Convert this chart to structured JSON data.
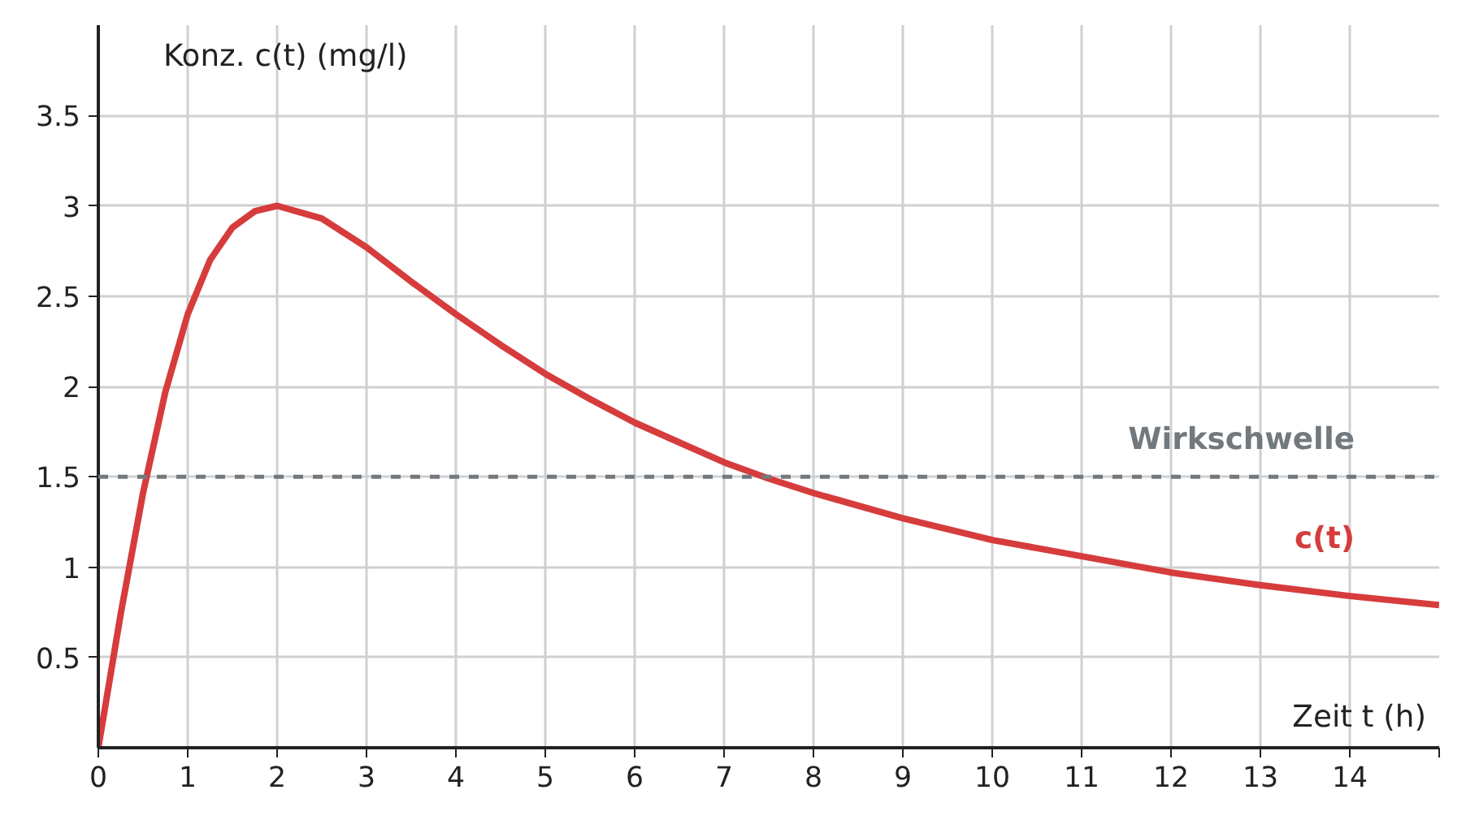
{
  "chart_data": {
    "type": "line",
    "xlabel": "Zeit t (h)",
    "ylabel": "Konz. c(t) (mg/l)",
    "x": [
      0,
      0.25,
      0.5,
      0.75,
      1,
      1.25,
      1.5,
      1.75,
      2,
      2.5,
      3,
      3.5,
      4,
      4.5,
      5,
      5.5,
      6,
      6.5,
      7,
      7.5,
      8,
      9,
      10,
      11,
      12,
      13,
      14,
      15
    ],
    "series": [
      {
        "name": "c(t)",
        "color": "#d63c3c",
        "values": [
          0,
          0.74,
          1.41,
          1.97,
          2.4,
          2.7,
          2.88,
          2.97,
          3,
          2.93,
          2.77,
          2.58,
          2.4,
          2.23,
          2.07,
          1.93,
          1.8,
          1.69,
          1.58,
          1.49,
          1.41,
          1.27,
          1.15,
          1.06,
          0.97,
          0.9,
          0.84,
          0.79
        ]
      }
    ],
    "xlim": [
      0,
      15
    ],
    "ylim": [
      0,
      4
    ],
    "xticks": [
      0,
      1,
      2,
      3,
      4,
      5,
      6,
      7,
      8,
      9,
      10,
      11,
      12,
      13,
      14,
      {
        "value": 15,
        "label": null
      }
    ],
    "yticks": [
      0.5,
      1,
      1.5,
      2,
      2.5,
      3,
      3.5
    ],
    "ref_lines": [
      {
        "axis": "y",
        "value": 1.5,
        "label": "Wirkschwelle",
        "color": "#72797e",
        "line_style": "dashed"
      }
    ],
    "grid": true,
    "marker": "none",
    "line_style": "solid"
  }
}
